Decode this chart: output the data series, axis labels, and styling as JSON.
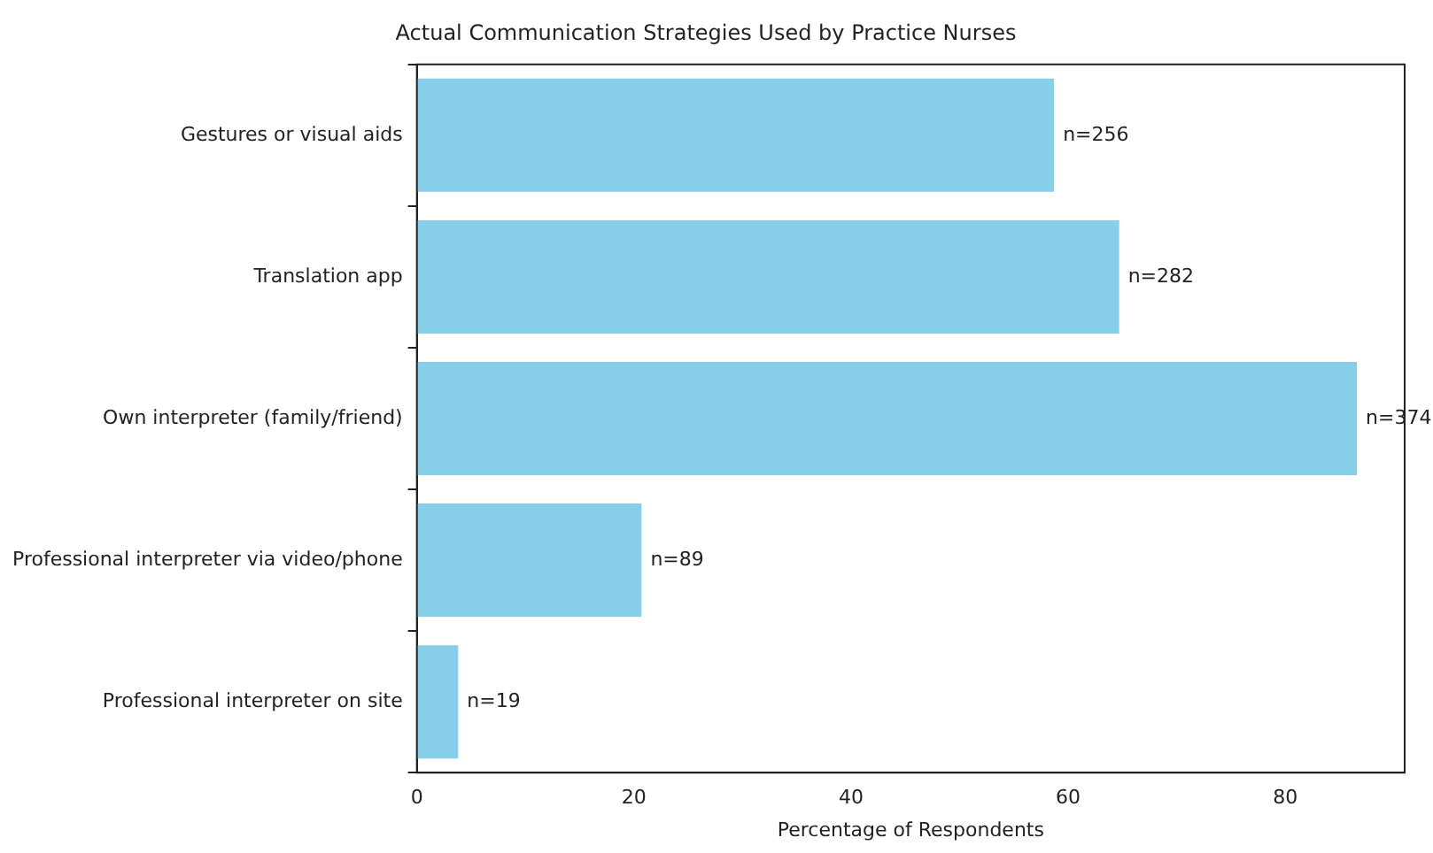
{
  "chart_data": {
    "type": "bar",
    "orientation": "horizontal",
    "title": "Actual Communication Strategies Used by Practice Nurses",
    "xlabel": "Percentage of Respondents",
    "categories": [
      "Gestures or visual aids",
      "Translation app",
      "Own interpreter (family/friend)",
      "Professional interpreter via video/phone",
      "Professional interpreter on site"
    ],
    "values": [
      58.7,
      64.7,
      86.6,
      20.7,
      3.8
    ],
    "annotations": [
      {
        "text": "n=256",
        "x": 58.7,
        "y": "Gestures or visual aids"
      },
      {
        "text": "n=282",
        "x": 64.7,
        "y": "Translation app"
      },
      {
        "text": "n=374",
        "x": 86.6,
        "y": "Own interpreter (family/friend)"
      },
      {
        "text": "n=89",
        "x": 20.7,
        "y": "Professional interpreter via video/phone"
      },
      {
        "text": "n=19",
        "x": 3.8,
        "y": "Professional interpreter on site"
      }
    ],
    "color": "#87ceeb",
    "xlim": [
      0,
      91
    ],
    "xticks": [
      0,
      20,
      40,
      60,
      80
    ],
    "grid": false,
    "legend": false
  }
}
